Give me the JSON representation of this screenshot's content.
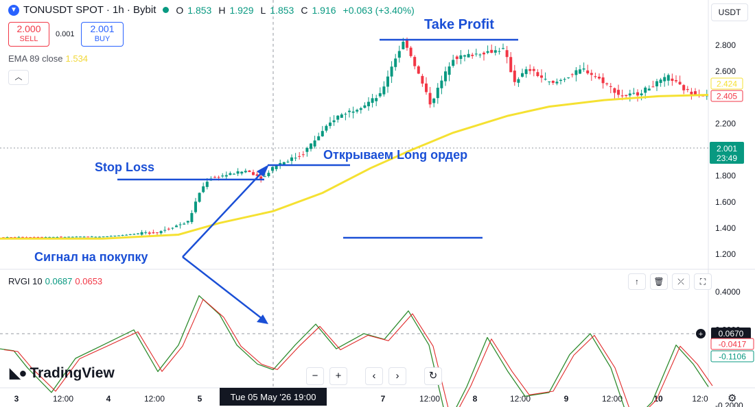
{
  "header": {
    "symbol": "TONUSDT SPOT · 1h · Bybit",
    "open_label": "O",
    "open": "1.853",
    "high_label": "H",
    "high": "1.929",
    "low_label": "L",
    "low": "1.853",
    "close_label": "C",
    "close": "1.916",
    "change": "+0.063 (+3.40%)"
  },
  "trade": {
    "sell_price": "2.000",
    "sell_label": "SELL",
    "spread": "0.001",
    "buy_price": "2.001",
    "buy_label": "BUY"
  },
  "ema": {
    "label": "EMA 89 close",
    "value": "1.534"
  },
  "rvgi": {
    "label": "RVGI 10",
    "value1": "0.0687",
    "value2": "0.0653"
  },
  "currency": "USDT",
  "price_axis": {
    "ticks": [
      "2.800",
      "2.600",
      "2.200",
      "1.800",
      "1.600",
      "1.400",
      "1.200"
    ],
    "ema_badge": "2.424",
    "last_badge": "2.405",
    "current_price": "2.001",
    "countdown": "23:49"
  },
  "osc_axis": {
    "ticks": [
      "0.4000",
      "0.2000",
      "-0.2000"
    ],
    "crosshair_value": "0.0670",
    "badge_red": "-0.0417",
    "badge_green": "-0.1106"
  },
  "time_axis": {
    "labels": [
      "3",
      "12:00",
      "4",
      "12:00",
      "5",
      "12:00",
      "7",
      "12:00",
      "8",
      "12:00",
      "9",
      "12:00",
      "10",
      "12:0"
    ],
    "crosshair_label": "Tue 05 May '26   19:00"
  },
  "annotations": {
    "take_profit": "Take Profit",
    "stop_loss": "Stop Loss",
    "open_long": "Открываем Long ордер",
    "buy_signal": "Сигнал на покупку"
  },
  "branding": {
    "name": "TradingView"
  },
  "colors": {
    "up": "#089981",
    "down": "#f23645",
    "ema": "#f5e132",
    "annotation": "#1a4fd6",
    "rvgi_fast": "#2e8b2e",
    "rvgi_slow": "#e02a2a"
  },
  "icons": {
    "pane_tools": [
      "arrow-up-icon",
      "trash-icon",
      "collapse-icon",
      "maximize-icon"
    ],
    "nav": [
      "zoom-out-icon",
      "zoom-in-icon",
      "scroll-left-icon",
      "scroll-right-icon",
      "reset-icon"
    ],
    "settings": "gear-icon"
  },
  "chart_data": [
    {
      "type": "candlestick",
      "title": "TONUSDT SPOT · 1h · Bybit",
      "ylim": [
        1.12,
        3.0
      ],
      "series": [
        {
          "name": "EMA 89 close",
          "x": [
            "3",
            "4",
            "5",
            "7",
            "8",
            "9",
            "10"
          ],
          "values": [
            1.32,
            1.34,
            1.52,
            2.0,
            2.26,
            2.36,
            2.42
          ]
        }
      ],
      "price_path": {
        "x": [
          "3",
          "4",
          "5",
          "Tue 05 May '26 19:00",
          "7",
          "8",
          "9",
          "10"
        ],
        "values": [
          1.33,
          1.37,
          1.78,
          1.88,
          2.83,
          2.74,
          2.52,
          2.42
        ]
      },
      "levels": {
        "take_profit": 2.84,
        "stop_loss": 1.77,
        "entry": 1.87
      }
    },
    {
      "type": "line",
      "title": "RVGI 10",
      "ylim": [
        -0.25,
        0.45
      ],
      "series": [
        {
          "name": "RVGI 10",
          "x": [
            "3",
            "4",
            "5",
            "7",
            "8",
            "9",
            "10"
          ],
          "values": [
            0.1,
            -0.13,
            0.38,
            0.3,
            -0.3,
            0.18,
            -0.15
          ]
        }
      ]
    }
  ]
}
